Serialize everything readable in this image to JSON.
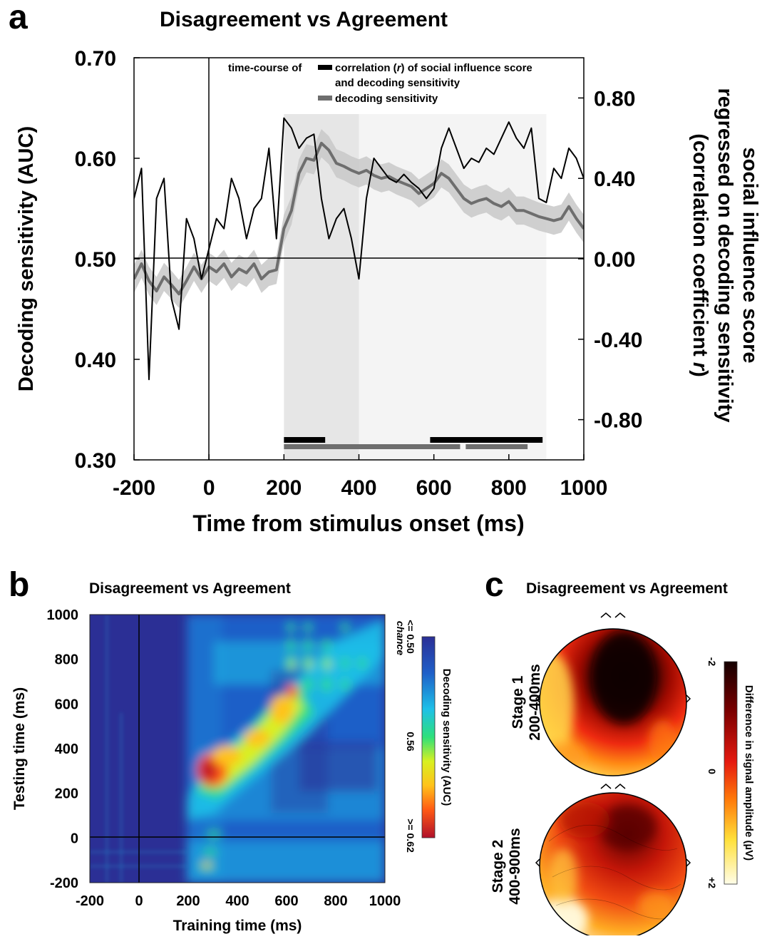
{
  "panel_a": {
    "letter": "a",
    "title": "Disagreement vs Agreement",
    "legend_prefix": "time-course of",
    "legend_corr_line1": "correlation (",
    "legend_corr_r": "r",
    "legend_corr_line1b": ") of social influence score",
    "legend_corr_line2": "and decoding sensitivity",
    "legend_auc": "decoding sensitivity",
    "ylabel_left": "Decoding sensitivity (AUC)",
    "ylabel_right_line1": "social influence score",
    "ylabel_right_line2": "regressed on decoding sensitivity",
    "ylabel_right_line3": "(correlation coefficient ",
    "ylabel_right_r": "r",
    "ylabel_right_line3b": ")",
    "xlabel": "Time from stimulus onset (ms)"
  },
  "panel_b": {
    "letter": "b",
    "title": "Disagreement vs Agreement",
    "xlabel": "Training time (ms)",
    "ylabel": "Testing time (ms)",
    "colorbar_label": "Decoding sensitivity (AUC)",
    "cb_top": "<= 0.50",
    "cb_top2": "chance",
    "cb_mid": "0.56",
    "cb_bottom": ">= 0.62"
  },
  "panel_c": {
    "letter": "c",
    "title": "Disagreement vs Agreement",
    "stage1_line1": "Stage 1",
    "stage1_line2": "200-400ms",
    "stage2_line1": "Stage 2",
    "stage2_line2": "400-900ms",
    "colorbar_label": "Difference in signal amplitude (µV)",
    "cb_top": "-2",
    "cb_mid": "0",
    "cb_bottom": "+2"
  },
  "chart_data": [
    {
      "type": "line",
      "panel": "a",
      "title": "Disagreement vs Agreement",
      "xlabel": "Time from stimulus onset (ms)",
      "ylabel": "Decoding sensitivity (AUC)",
      "y2label": "social influence score regressed on decoding sensitivity (correlation coefficient r)",
      "xlim": [
        -200,
        1000
      ],
      "ylim": [
        0.3,
        0.7
      ],
      "y2lim": [
        -1.0,
        1.0
      ],
      "xticks": [
        "-200",
        "0",
        "200",
        "400",
        "600",
        "800",
        "1000"
      ],
      "yticks": [
        "0.30",
        "0.40",
        "0.50",
        "0.60",
        "0.70"
      ],
      "y2ticks": [
        "-0.80",
        "-0.40",
        "0.00",
        "0.40",
        "0.80"
      ],
      "shaded_windows": [
        {
          "from": 200,
          "to": 400,
          "shade": "#e6e6e6"
        },
        {
          "from": 400,
          "to": 900,
          "shade": "#f4f4f4"
        }
      ],
      "significance_bars": {
        "correlation": [
          [
            200,
            310
          ],
          [
            590,
            890
          ]
        ],
        "decoding": [
          [
            200,
            670
          ],
          [
            685,
            850
          ]
        ]
      },
      "series": [
        {
          "name": "decoding sensitivity",
          "axis": "left",
          "color": "#6e6e6e",
          "x": [
            -200,
            -180,
            -160,
            -140,
            -120,
            -100,
            -80,
            -60,
            -40,
            -20,
            0,
            20,
            40,
            60,
            80,
            100,
            120,
            140,
            160,
            180,
            200,
            220,
            240,
            260,
            280,
            300,
            320,
            340,
            360,
            380,
            400,
            420,
            440,
            460,
            480,
            500,
            520,
            540,
            560,
            580,
            600,
            620,
            640,
            660,
            680,
            700,
            720,
            740,
            760,
            780,
            800,
            820,
            840,
            860,
            880,
            900,
            920,
            940,
            960,
            980,
            1000
          ],
          "y": [
            0.48,
            0.495,
            0.478,
            0.468,
            0.482,
            0.474,
            0.465,
            0.478,
            0.492,
            0.48,
            0.492,
            0.487,
            0.495,
            0.482,
            0.49,
            0.486,
            0.495,
            0.48,
            0.487,
            0.489,
            0.53,
            0.548,
            0.585,
            0.6,
            0.598,
            0.615,
            0.608,
            0.595,
            0.592,
            0.588,
            0.585,
            0.588,
            0.583,
            0.58,
            0.582,
            0.578,
            0.575,
            0.572,
            0.565,
            0.57,
            0.575,
            0.585,
            0.58,
            0.57,
            0.56,
            0.555,
            0.558,
            0.56,
            0.555,
            0.552,
            0.557,
            0.548,
            0.548,
            0.545,
            0.542,
            0.54,
            0.538,
            0.54,
            0.552,
            0.54,
            0.53
          ]
        },
        {
          "name": "correlation (r) of social influence score and decoding sensitivity",
          "axis": "right",
          "color": "#000000",
          "x": [
            -200,
            -180,
            -160,
            -140,
            -120,
            -100,
            -80,
            -60,
            -40,
            -20,
            0,
            20,
            40,
            60,
            80,
            100,
            120,
            140,
            160,
            180,
            200,
            220,
            240,
            260,
            280,
            300,
            320,
            340,
            360,
            380,
            400,
            420,
            440,
            460,
            480,
            500,
            520,
            540,
            560,
            580,
            600,
            620,
            640,
            660,
            680,
            700,
            720,
            740,
            760,
            780,
            800,
            820,
            840,
            860,
            880,
            900,
            920,
            940,
            960,
            980,
            1000
          ],
          "y": [
            0.3,
            0.45,
            -0.6,
            0.3,
            0.4,
            -0.2,
            -0.35,
            0.2,
            0.1,
            -0.1,
            0.05,
            0.2,
            0.15,
            0.4,
            0.3,
            0.1,
            0.25,
            0.3,
            0.55,
            0.1,
            0.7,
            0.65,
            0.55,
            0.6,
            0.62,
            0.3,
            0.1,
            0.2,
            0.25,
            0.1,
            -0.1,
            0.3,
            0.5,
            0.45,
            0.4,
            0.38,
            0.42,
            0.38,
            0.35,
            0.3,
            0.35,
            0.55,
            0.65,
            0.55,
            0.45,
            0.5,
            0.48,
            0.55,
            0.52,
            0.6,
            0.68,
            0.6,
            0.55,
            0.65,
            0.3,
            0.28,
            0.45,
            0.4,
            0.55,
            0.5,
            0.4
          ]
        }
      ]
    },
    {
      "type": "heatmap",
      "panel": "b",
      "title": "Disagreement vs Agreement",
      "xlabel": "Training time (ms)",
      "ylabel": "Testing time (ms)",
      "xlim": [
        -200,
        1000
      ],
      "ylim": [
        -200,
        1000
      ],
      "xticks": [
        "-200",
        "0",
        "200",
        "400",
        "600",
        "800",
        "1000"
      ],
      "yticks": [
        "-200",
        "0",
        "200",
        "400",
        "600",
        "800",
        "1000"
      ],
      "color_range": [
        0.5,
        0.62
      ],
      "colorbar_ticks": [
        "<= 0.50 chance",
        "0.56",
        ">= 0.62"
      ]
    },
    {
      "type": "heatmap",
      "panel": "c",
      "title": "Disagreement vs Agreement",
      "subplots": [
        "Stage 1 200-400ms",
        "Stage 2 400-900ms"
      ],
      "colorbar_ticks": [
        "-2",
        "0",
        "+2"
      ],
      "color_range": [
        -2,
        2
      ]
    }
  ]
}
